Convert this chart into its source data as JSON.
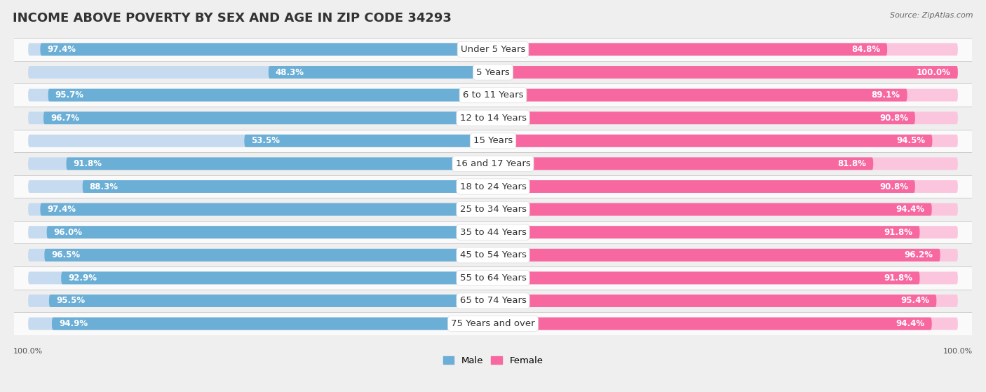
{
  "title": "INCOME ABOVE POVERTY BY SEX AND AGE IN ZIP CODE 34293",
  "source": "Source: ZipAtlas.com",
  "categories": [
    "Under 5 Years",
    "5 Years",
    "6 to 11 Years",
    "12 to 14 Years",
    "15 Years",
    "16 and 17 Years",
    "18 to 24 Years",
    "25 to 34 Years",
    "35 to 44 Years",
    "45 to 54 Years",
    "55 to 64 Years",
    "65 to 74 Years",
    "75 Years and over"
  ],
  "male_values": [
    97.4,
    48.3,
    95.7,
    96.7,
    53.5,
    91.8,
    88.3,
    97.4,
    96.0,
    96.5,
    92.9,
    95.5,
    94.9
  ],
  "female_values": [
    84.8,
    100.0,
    89.1,
    90.8,
    94.5,
    81.8,
    90.8,
    94.4,
    91.8,
    96.2,
    91.8,
    95.4,
    94.4
  ],
  "male_color": "#6BAED6",
  "male_light_color": "#C6DBEF",
  "female_color": "#F768A1",
  "female_light_color": "#FCC5DE",
  "bg_color": "#EFEFEF",
  "row_colors": [
    "#FAFAFA",
    "#EFEFEF"
  ],
  "separator_color": "#CCCCCC",
  "title_fontsize": 13,
  "label_fontsize": 9.5,
  "value_fontsize": 8.5,
  "source_fontsize": 8
}
